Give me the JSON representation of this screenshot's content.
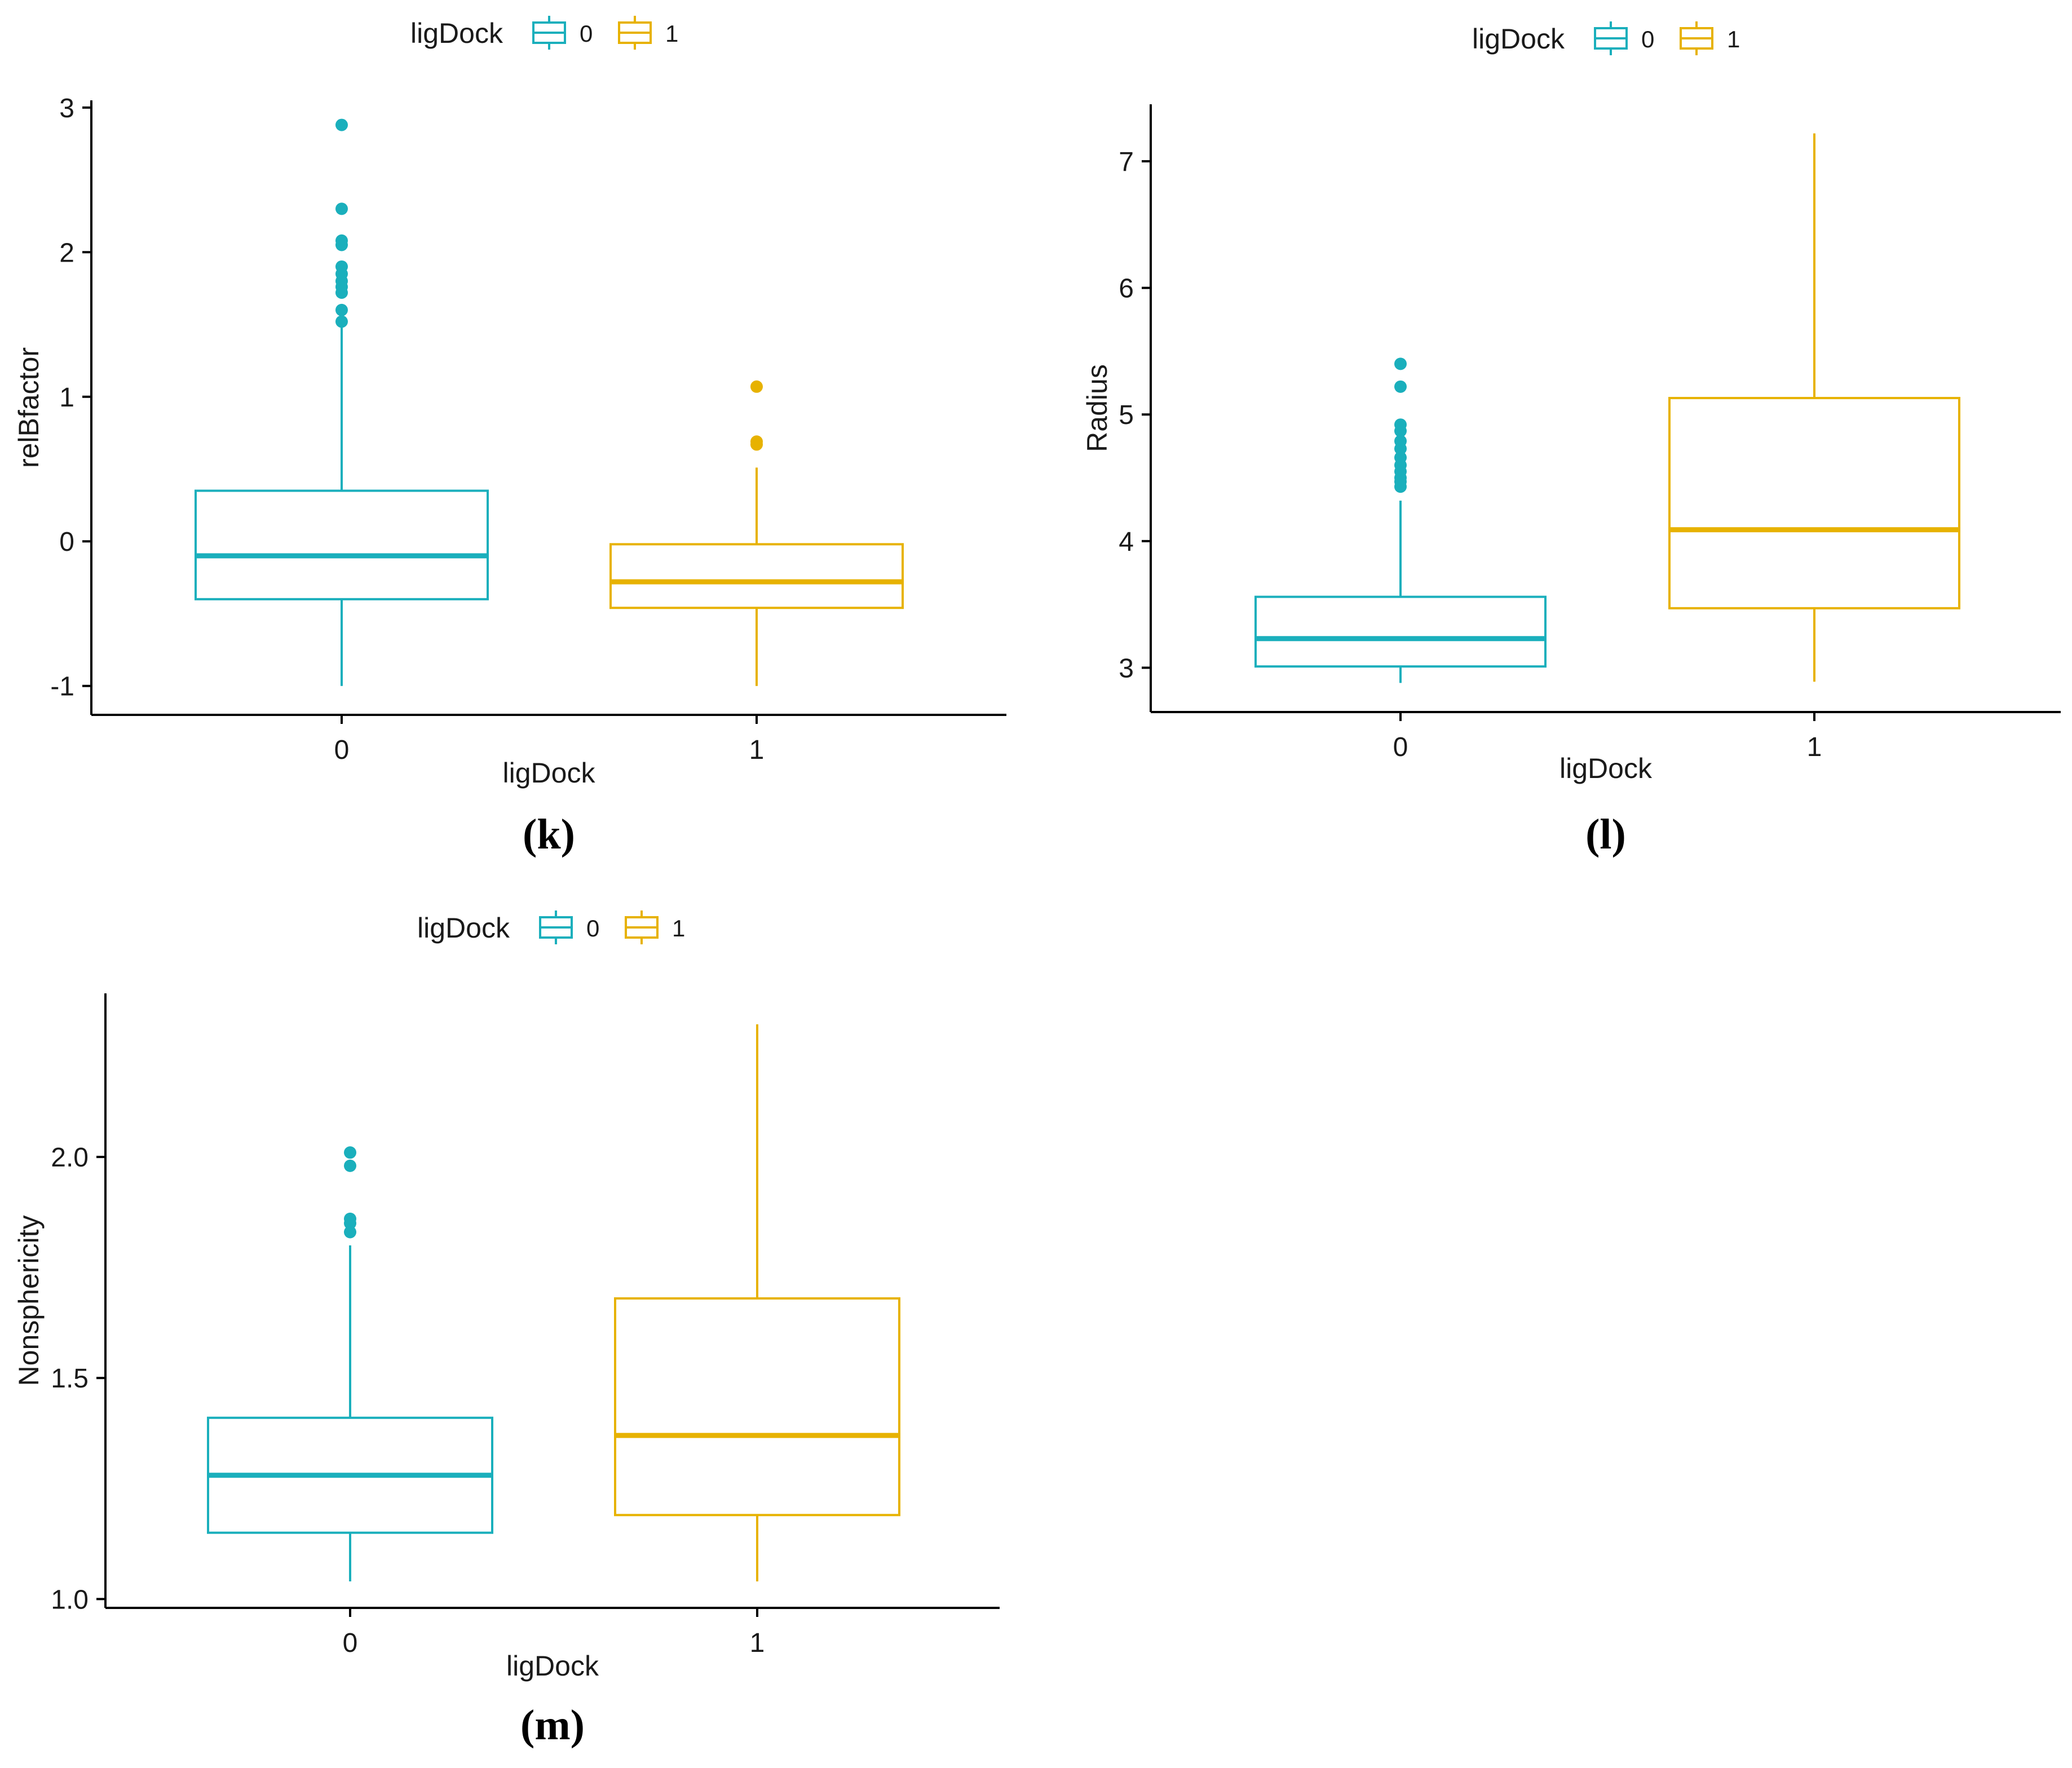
{
  "colors": {
    "group0": "#1AAFBC",
    "group1": "#E7B200",
    "axis": "#000000",
    "text": "#1a1a1a"
  },
  "chart_data": [
    {
      "type": "box",
      "panel_label": "(k)",
      "legend": {
        "title": "ligDock",
        "placement": "top",
        "entries": [
          "0",
          "1"
        ]
      },
      "xlabel": "ligDock",
      "ylabel": "relBfactor",
      "categories": [
        "0",
        "1"
      ],
      "ylim": [
        -1.2,
        3.05
      ],
      "yticks": [
        -1,
        0,
        1,
        2,
        3
      ],
      "ytick_labels": [
        "-1",
        "0",
        "1",
        "2",
        "3"
      ],
      "series": [
        {
          "category": "0",
          "lower_whisker": -1.0,
          "q1": -0.4,
          "median": -0.1,
          "q3": 0.35,
          "upper_whisker": 1.5,
          "outliers": [
            1.52,
            1.6,
            1.72,
            1.76,
            1.8,
            1.85,
            1.9,
            2.05,
            2.08,
            2.3,
            2.88
          ]
        },
        {
          "category": "1",
          "lower_whisker": -1.0,
          "q1": -0.46,
          "median": -0.28,
          "q3": -0.02,
          "upper_whisker": 0.51,
          "outliers": [
            0.67,
            0.69,
            1.07
          ]
        }
      ],
      "grid": false
    },
    {
      "type": "box",
      "panel_label": "(l)",
      "legend": {
        "title": "ligDock",
        "placement": "top",
        "entries": [
          "0",
          "1"
        ]
      },
      "xlabel": "ligDock",
      "ylabel": "Radius",
      "categories": [
        "0",
        "1"
      ],
      "ylim": [
        2.65,
        7.45
      ],
      "yticks": [
        3,
        4,
        5,
        6,
        7
      ],
      "ytick_labels": [
        "3",
        "4",
        "5",
        "6",
        "7"
      ],
      "series": [
        {
          "category": "0",
          "lower_whisker": 2.88,
          "q1": 3.01,
          "median": 3.23,
          "q3": 3.56,
          "upper_whisker": 4.32,
          "outliers": [
            4.43,
            4.47,
            4.5,
            4.55,
            4.6,
            4.66,
            4.73,
            4.79,
            4.87,
            4.92,
            5.22,
            5.4
          ]
        },
        {
          "category": "1",
          "lower_whisker": 2.89,
          "q1": 3.47,
          "median": 4.09,
          "q3": 5.13,
          "upper_whisker": 7.22,
          "outliers": []
        }
      ],
      "grid": false
    },
    {
      "type": "box",
      "panel_label": "(m)",
      "legend": {
        "title": "ligDock",
        "placement": "top",
        "entries": [
          "0",
          "1"
        ]
      },
      "xlabel": "ligDock",
      "ylabel": "Nonsphericity",
      "categories": [
        "0",
        "1"
      ],
      "ylim": [
        0.98,
        2.37
      ],
      "yticks": [
        1.0,
        1.5,
        2.0
      ],
      "ytick_labels": [
        "1.0",
        "1.5",
        "2.0"
      ],
      "series": [
        {
          "category": "0",
          "lower_whisker": 1.04,
          "q1": 1.15,
          "median": 1.28,
          "q3": 1.41,
          "upper_whisker": 1.8,
          "outliers": [
            1.83,
            1.85,
            1.86,
            1.98,
            2.01
          ]
        },
        {
          "category": "1",
          "lower_whisker": 1.04,
          "q1": 1.19,
          "median": 1.37,
          "q3": 1.68,
          "upper_whisker": 2.3,
          "outliers": []
        }
      ],
      "grid": false
    }
  ]
}
